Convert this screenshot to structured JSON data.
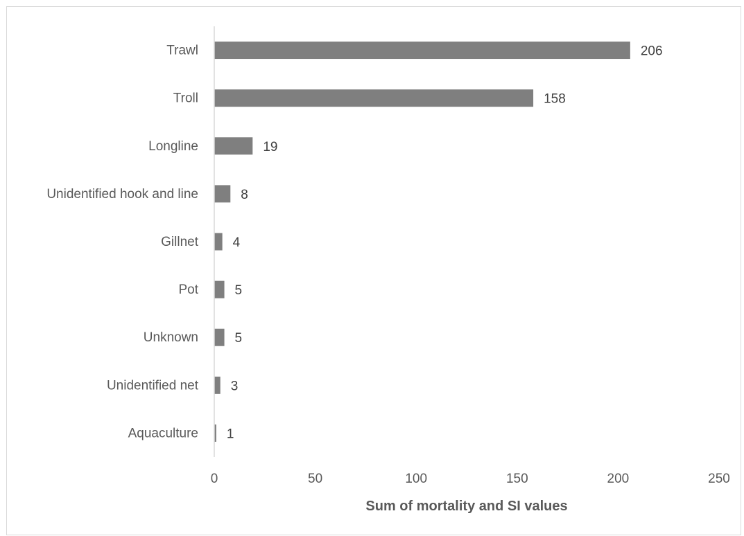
{
  "chart_data": {
    "type": "bar",
    "orientation": "horizontal",
    "title": "",
    "xlabel": "Sum of mortality and SI values",
    "ylabel": "",
    "categories": [
      "Trawl",
      "Troll",
      "Longline ",
      "Unidentified hook and line",
      "Gillnet",
      "Pot",
      "Unknown",
      "Unidentified net",
      "Aquaculture"
    ],
    "values": [
      206,
      158,
      19,
      8,
      4,
      5,
      5,
      3,
      1
    ],
    "xlim": [
      0,
      250
    ],
    "x_ticks": [
      0,
      50,
      100,
      150,
      200,
      250
    ],
    "grid": false,
    "legend": "none",
    "bar_color": "#7f7f7f",
    "axis_color": "#d9d9d9",
    "data_labels": true
  }
}
